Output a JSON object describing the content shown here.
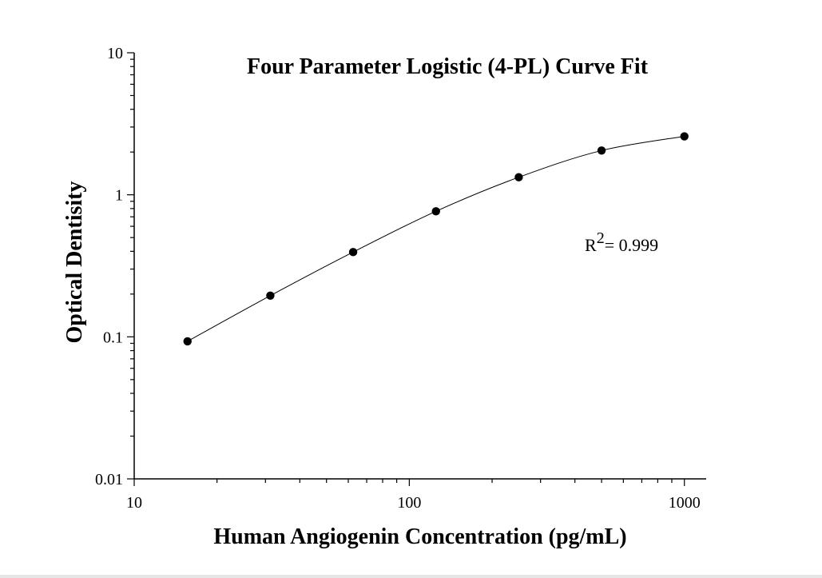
{
  "chart_data": {
    "type": "scatter",
    "title": "Four Parameter Logistic (4-PL) Curve Fit",
    "xlabel": "Human Angiogenin Concentration (pg/mL)",
    "ylabel": "Optical Dentisity",
    "x_scale": "log",
    "y_scale": "log",
    "xlim": [
      10,
      1200
    ],
    "ylim": [
      0.01,
      10
    ],
    "x_ticks": [
      "10",
      "100",
      "1000"
    ],
    "y_ticks": [
      "0.01",
      "0.1",
      "1",
      "10"
    ],
    "grid": false,
    "series": [
      {
        "x": [
          15.625,
          31.25,
          62.5,
          125,
          250,
          500,
          1000
        ],
        "y": [
          0.093,
          0.195,
          0.395,
          0.765,
          1.33,
          2.05,
          2.58
        ]
      }
    ],
    "fit_curve": {
      "model": "4-PL",
      "annotation_base": "R",
      "annotation_sup": "2",
      "annotation_value": "= 0.999"
    }
  }
}
